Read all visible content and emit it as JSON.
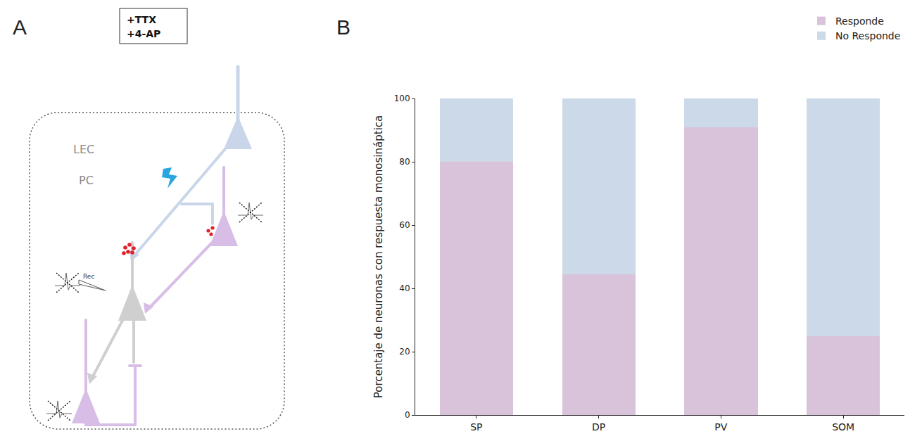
{
  "panel_letters": [
    "A",
    "B"
  ],
  "diagram": {
    "drug_box": [
      "+TTX",
      "+4-AP"
    ],
    "regions": [
      "LEC",
      "PC"
    ],
    "recording_label": "Rec"
  },
  "chart_data": {
    "type": "bar",
    "stacked": true,
    "y_label": "Porcentaje de neuronas con respuesta monosináptica",
    "categories": [
      "SP",
      "DP",
      "PV",
      "SOM"
    ],
    "series": [
      {
        "name": "Responde",
        "color": "#d9c3da",
        "values": [
          80,
          44.4,
          90.9,
          25
        ]
      },
      {
        "name": "No Responde",
        "color": "#ccd9e8",
        "values": [
          20,
          55.6,
          9.1,
          75
        ]
      }
    ],
    "ylim": [
      0,
      100
    ],
    "yticks": [
      0,
      20,
      40,
      60,
      80,
      100
    ],
    "grid": false,
    "legend": "upper right"
  }
}
